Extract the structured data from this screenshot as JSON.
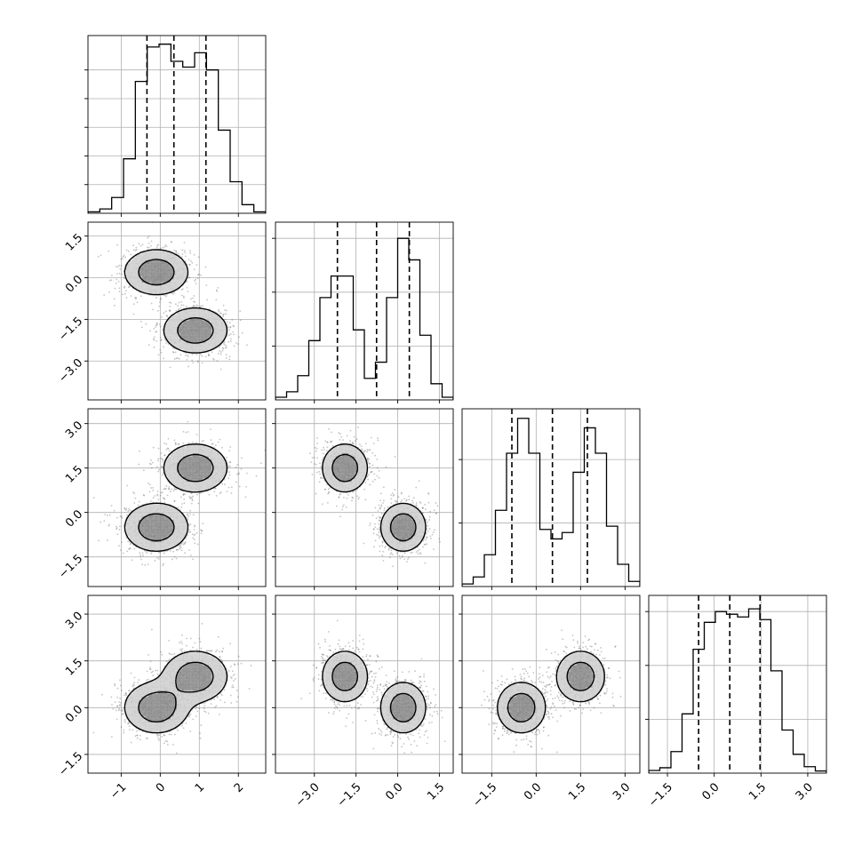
{
  "chart_data": {
    "type": "corner",
    "colors": {
      "ink": "#000000",
      "grid": "#b0b0b0",
      "cloud": "#555555"
    },
    "params": [
      {
        "range": [
          -1.85,
          2.7
        ],
        "ticks": [
          -1,
          0,
          1,
          2
        ],
        "tick_labels": [
          "−1",
          "0",
          "1",
          "2"
        ],
        "hist_bins": [
          0.05,
          0.15,
          0.55,
          1.9,
          4.6,
          5.8,
          5.9,
          5.3,
          5.1,
          5.6,
          5.0,
          2.9,
          1.1,
          0.3,
          0.05
        ],
        "hist_ylim": [
          0,
          6.2
        ],
        "hist_yticks": [
          1,
          2,
          3,
          4,
          5
        ],
        "quantiles": [
          -0.34,
          0.35,
          1.17
        ]
      },
      {
        "range": [
          -4.4,
          2.0
        ],
        "ticks": [
          -3.0,
          -1.5,
          0.0,
          1.5
        ],
        "tick_labels": [
          "−3.0",
          "−1.5",
          "0.0",
          "1.5"
        ],
        "hist_bins": [
          0.05,
          0.15,
          0.45,
          1.1,
          1.9,
          2.3,
          2.3,
          1.3,
          0.4,
          0.7,
          1.9,
          3.0,
          2.6,
          1.2,
          0.3,
          0.05
        ],
        "hist_ylim": [
          0,
          3.3
        ],
        "hist_yticks": [
          1,
          2,
          3
        ],
        "quantiles": [
          -2.17,
          -0.76,
          0.42
        ]
      },
      {
        "range": [
          -2.5,
          3.5
        ],
        "ticks": [
          -1.5,
          0.0,
          1.5,
          3.0
        ],
        "tick_labels": [
          "−1.5",
          "0.0",
          "1.5",
          "3.0"
        ],
        "hist_bins": [
          0.04,
          0.15,
          0.5,
          1.2,
          2.1,
          2.65,
          2.1,
          0.9,
          0.75,
          0.85,
          1.8,
          2.5,
          2.1,
          0.95,
          0.35,
          0.08
        ],
        "hist_ylim": [
          0,
          2.8
        ],
        "hist_yticks": [
          1,
          2
        ],
        "quantiles": [
          -0.82,
          0.55,
          1.73
        ]
      },
      {
        "range": [
          -2.1,
          3.6
        ],
        "ticks": [
          -1.5,
          0.0,
          1.5,
          3.0
        ],
        "tick_labels": [
          "−1.5",
          "0.0",
          "1.5",
          "3.0"
        ],
        "hist_bins": [
          0.05,
          0.1,
          0.4,
          1.1,
          2.3,
          2.8,
          3.0,
          2.95,
          2.9,
          3.05,
          2.85,
          1.9,
          0.8,
          0.35,
          0.12,
          0.04
        ],
        "hist_ylim": [
          0,
          3.3
        ],
        "hist_yticks": [
          1,
          2,
          3
        ],
        "quantiles": [
          -0.5,
          0.5,
          1.47
        ]
      }
    ],
    "mixture": [
      {
        "weight": 0.5,
        "mean": [
          -0.1,
          0.2,
          -0.5,
          0.0
        ],
        "sd": [
          0.45,
          0.45,
          0.45,
          0.45
        ]
      },
      {
        "weight": 0.5,
        "mean": [
          0.9,
          -1.9,
          1.5,
          1.0
        ],
        "sd": [
          0.45,
          0.45,
          0.45,
          0.45
        ]
      }
    ],
    "density_levels": [
      0.1,
      0.3,
      0.55,
      0.8
    ],
    "grid": true
  }
}
